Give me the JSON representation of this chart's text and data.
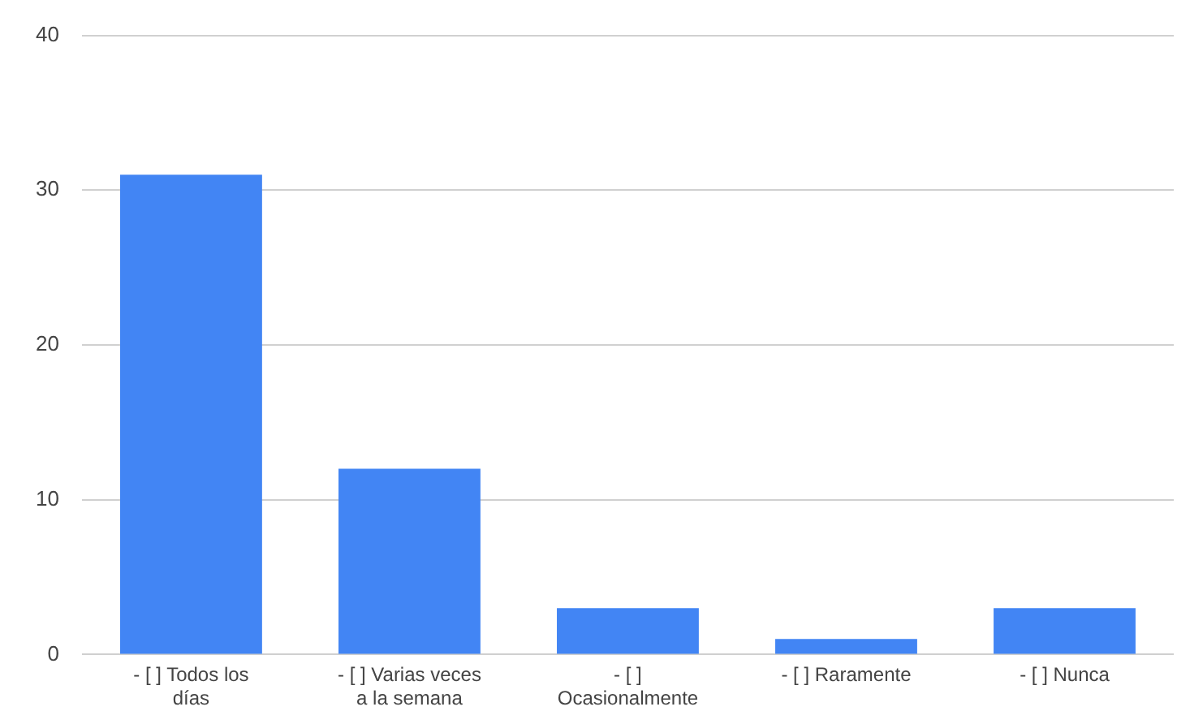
{
  "chart_data": {
    "type": "bar",
    "categories": [
      "- [ ] Todos los días",
      "- [ ] Varias veces a la semana",
      "- [ ] Ocasionalmente",
      "- [ ] Raramente",
      "- [ ] Nunca"
    ],
    "values": [
      31,
      12,
      3,
      1,
      3
    ],
    "color": "#4285f4",
    "ylim": [
      0,
      40
    ],
    "yticks": [
      0,
      10,
      20,
      30,
      40
    ],
    "grid": "y",
    "legend": false
  }
}
